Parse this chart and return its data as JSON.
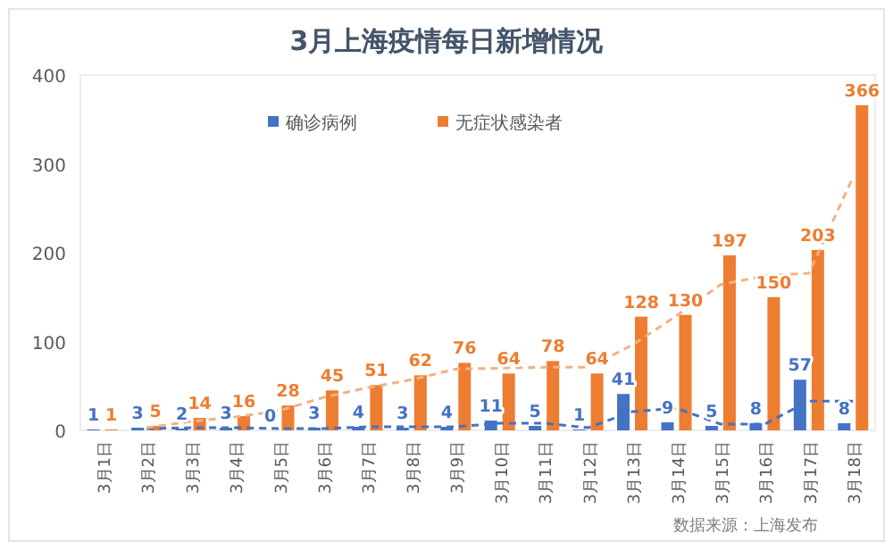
{
  "chart_data": {
    "type": "bar",
    "title": "3月上海疫情每日新增情况",
    "categories": [
      "3月1日",
      "3月2日",
      "3月3日",
      "3月4日",
      "3月5日",
      "3月6日",
      "3月7日",
      "3月8日",
      "3月9日",
      "3月10日",
      "3月11日",
      "3月12日",
      "3月13日",
      "3月14日",
      "3月15日",
      "3月16日",
      "3月17日",
      "3月18日"
    ],
    "series": [
      {
        "name": "确诊病例",
        "color": "#4472c4",
        "values": [
          1,
          3,
          2,
          3,
          0,
          3,
          4,
          3,
          4,
          11,
          5,
          1,
          41,
          9,
          5,
          8,
          57,
          8
        ],
        "value_labels": [
          "1",
          "3",
          "2",
          "3",
          "0",
          "3",
          "4",
          "3",
          "4",
          "11",
          "5",
          "1",
          "41",
          "9",
          "5",
          "8",
          "57",
          "8"
        ]
      },
      {
        "name": "无症状感染者",
        "color": "#ed7d31",
        "values": [
          1,
          5,
          14,
          16,
          28,
          45,
          51,
          62,
          76,
          64,
          78,
          64,
          128,
          130,
          197,
          150,
          203,
          366
        ],
        "value_labels": [
          "1",
          "5",
          "14",
          "16",
          "28",
          "45",
          "51",
          "62",
          "76",
          "64",
          "78",
          "64",
          "128",
          "130",
          "197",
          "150",
          "203",
          "366"
        ]
      },
      {
        "type": "line",
        "line_style": "dashed",
        "marker": "none",
        "color": "#4472c4",
        "values": [
          null,
          2,
          3,
          3,
          2,
          2,
          4,
          4,
          4,
          8,
          8,
          3,
          21,
          25,
          7,
          7,
          33,
          33
        ]
      },
      {
        "type": "line",
        "line_style": "dashed",
        "marker": "none",
        "color": "#f4b183",
        "values": [
          null,
          3,
          10,
          15,
          22,
          37,
          48,
          57,
          69,
          70,
          71,
          71,
          96,
          129,
          164,
          174,
          177,
          285
        ]
      }
    ],
    "ylim": [
      0,
      400
    ],
    "yticks": [
      0,
      100,
      200,
      300,
      400
    ],
    "grid": false,
    "legend": "top",
    "annotations": [
      "数据来源：上海发布"
    ]
  }
}
